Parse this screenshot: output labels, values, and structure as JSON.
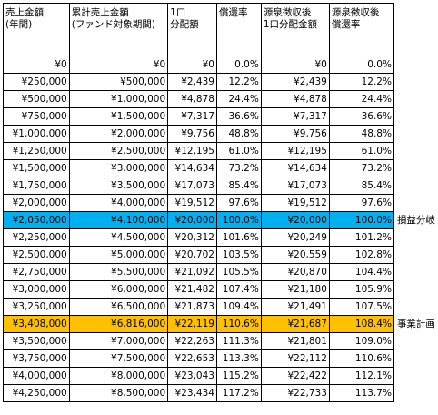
{
  "headers": [
    "売上金額\n(年間)",
    "累計売上金額\n(ファンド対象期間)",
    "1口\n分配額",
    "償還率",
    "源泉徴収後\n1口分配金額",
    "源泉徴収後\n償還率"
  ],
  "rows": [
    {
      "c": [
        "¥0",
        "¥0",
        "¥0",
        "0.0%",
        "¥0",
        "0.0%"
      ],
      "note": "",
      "hl": ""
    },
    {
      "c": [
        "¥250,000",
        "¥500,000",
        "¥2,439",
        "12.2%",
        "¥2,439",
        "12.2%"
      ],
      "note": "",
      "hl": ""
    },
    {
      "c": [
        "¥500,000",
        "¥1,000,000",
        "¥4,878",
        "24.4%",
        "¥4,878",
        "24.4%"
      ],
      "note": "",
      "hl": ""
    },
    {
      "c": [
        "¥750,000",
        "¥1,500,000",
        "¥7,317",
        "36.6%",
        "¥7,317",
        "36.6%"
      ],
      "note": "",
      "hl": ""
    },
    {
      "c": [
        "¥1,000,000",
        "¥2,000,000",
        "¥9,756",
        "48.8%",
        "¥9,756",
        "48.8%"
      ],
      "note": "",
      "hl": ""
    },
    {
      "c": [
        "¥1,250,000",
        "¥2,500,000",
        "¥12,195",
        "61.0%",
        "¥12,195",
        "61.0%"
      ],
      "note": "",
      "hl": ""
    },
    {
      "c": [
        "¥1,500,000",
        "¥3,000,000",
        "¥14,634",
        "73.2%",
        "¥14,634",
        "73.2%"
      ],
      "note": "",
      "hl": ""
    },
    {
      "c": [
        "¥1,750,000",
        "¥3,500,000",
        "¥17,073",
        "85.4%",
        "¥17,073",
        "85.4%"
      ],
      "note": "",
      "hl": ""
    },
    {
      "c": [
        "¥2,000,000",
        "¥4,000,000",
        "¥19,512",
        "97.6%",
        "¥19,512",
        "97.6%"
      ],
      "note": "",
      "hl": ""
    },
    {
      "c": [
        "¥2,050,000",
        "¥4,100,000",
        "¥20,000",
        "100.0%",
        "¥20,000",
        "100.0%"
      ],
      "note": "損益分岐",
      "hl": "breakeven"
    },
    {
      "c": [
        "¥2,250,000",
        "¥4,500,000",
        "¥20,312",
        "101.6%",
        "¥20,249",
        "101.2%"
      ],
      "note": "",
      "hl": ""
    },
    {
      "c": [
        "¥2,500,000",
        "¥5,000,000",
        "¥20,702",
        "103.5%",
        "¥20,559",
        "102.8%"
      ],
      "note": "",
      "hl": ""
    },
    {
      "c": [
        "¥2,750,000",
        "¥5,500,000",
        "¥21,092",
        "105.5%",
        "¥20,870",
        "104.4%"
      ],
      "note": "",
      "hl": ""
    },
    {
      "c": [
        "¥3,000,000",
        "¥6,000,000",
        "¥21,482",
        "107.4%",
        "¥21,180",
        "105.9%"
      ],
      "note": "",
      "hl": ""
    },
    {
      "c": [
        "¥3,250,000",
        "¥6,500,000",
        "¥21,873",
        "109.4%",
        "¥21,491",
        "107.5%"
      ],
      "note": "",
      "hl": ""
    },
    {
      "c": [
        "¥3,408,000",
        "¥6,816,000",
        "¥22,119",
        "110.6%",
        "¥21,687",
        "108.4%"
      ],
      "note": "事業計画",
      "hl": "plan"
    },
    {
      "c": [
        "¥3,500,000",
        "¥7,000,000",
        "¥22,263",
        "111.3%",
        "¥21,801",
        "109.0%"
      ],
      "note": "",
      "hl": ""
    },
    {
      "c": [
        "¥3,750,000",
        "¥7,500,000",
        "¥22,653",
        "113.3%",
        "¥22,112",
        "110.6%"
      ],
      "note": "",
      "hl": ""
    },
    {
      "c": [
        "¥4,000,000",
        "¥8,000,000",
        "¥23,043",
        "115.2%",
        "¥22,422",
        "112.1%"
      ],
      "note": "",
      "hl": ""
    },
    {
      "c": [
        "¥4,250,000",
        "¥8,500,000",
        "¥23,434",
        "117.2%",
        "¥22,733",
        "113.7%"
      ],
      "note": "",
      "hl": ""
    }
  ]
}
